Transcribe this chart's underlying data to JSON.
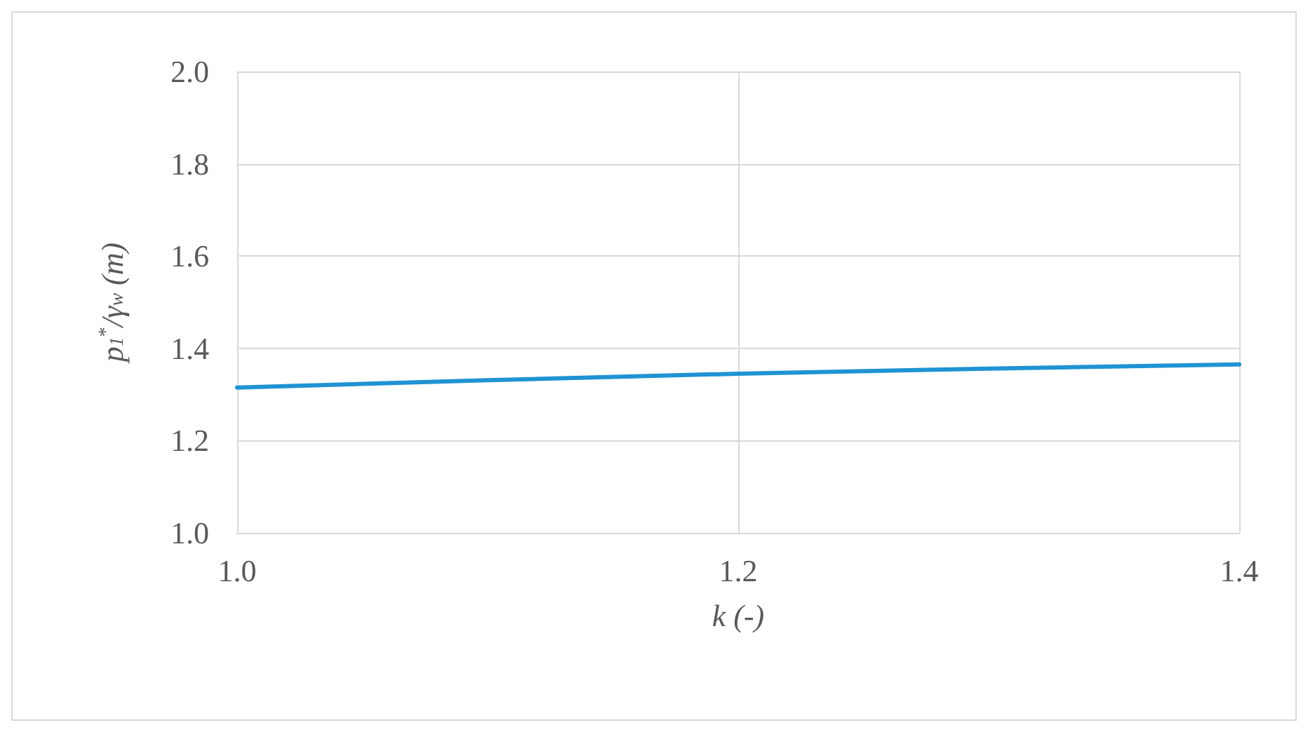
{
  "chart_data": {
    "type": "line",
    "xlabel": "k (-)",
    "ylabel": "p$_{1}$$^{*}$/γ$_{w}$ (m)",
    "x": [
      1.0,
      1.1,
      1.2,
      1.3,
      1.4
    ],
    "series": [
      {
        "color": "#1f93d3",
        "values": [
          1.315,
          1.331,
          1.345,
          1.356,
          1.365
        ]
      }
    ],
    "xlim": [
      1.0,
      1.4
    ],
    "xticks": [
      {
        "value": 1,
        "label": "1.0"
      },
      {
        "value": 1.2,
        "label": "1.2"
      },
      {
        "value": 1.4,
        "label": "1.4"
      }
    ],
    "ylim": [
      1.0,
      2.0
    ],
    "yticks": [
      {
        "value": 1,
        "label": "1.0"
      },
      {
        "value": 1.2,
        "label": "1.2"
      },
      {
        "value": 1.4,
        "label": "1.4"
      },
      {
        "value": 1.6,
        "label": "1.6"
      },
      {
        "value": 1.8,
        "label": "1.8"
      },
      {
        "value": 2,
        "label": "2.0"
      }
    ],
    "grid": true,
    "marker": "none",
    "line_style": "solid"
  }
}
